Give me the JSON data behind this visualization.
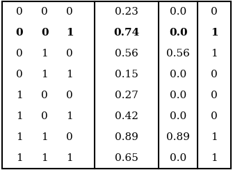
{
  "rows": [
    {
      "genotype": [
        "0",
        "0",
        "0"
      ],
      "fitness": "0.23",
      "col3": "0.0",
      "col4": "0",
      "bold": false
    },
    {
      "genotype": [
        "0",
        "0",
        "1"
      ],
      "fitness": "0.74",
      "col3": "0.0",
      "col4": "1",
      "bold": true
    },
    {
      "genotype": [
        "0",
        "1",
        "0"
      ],
      "fitness": "0.56",
      "col3": "0.56",
      "col4": "1",
      "bold": false
    },
    {
      "genotype": [
        "0",
        "1",
        "1"
      ],
      "fitness": "0.15",
      "col3": "0.0",
      "col4": "0",
      "bold": false
    },
    {
      "genotype": [
        "1",
        "0",
        "0"
      ],
      "fitness": "0.27",
      "col3": "0.0",
      "col4": "0",
      "bold": false
    },
    {
      "genotype": [
        "1",
        "0",
        "1"
      ],
      "fitness": "0.42",
      "col3": "0.0",
      "col4": "0",
      "bold": false
    },
    {
      "genotype": [
        "1",
        "1",
        "0"
      ],
      "fitness": "0.89",
      "col3": "0.89",
      "col4": "1",
      "bold": false
    },
    {
      "genotype": [
        "1",
        "1",
        "1"
      ],
      "fitness": "0.65",
      "col3": "0.0",
      "col4": "1",
      "bold": false
    }
  ],
  "background_color": "#ffffff",
  "border_color": "#000000",
  "fontsize": 11.0,
  "gx1": 0.075,
  "gx2": 0.185,
  "gx3": 0.295,
  "div1": 0.405,
  "div2": 0.685,
  "div3": 0.855,
  "fx1": 0.545,
  "fx2": 0.77,
  "fx3": 0.928
}
